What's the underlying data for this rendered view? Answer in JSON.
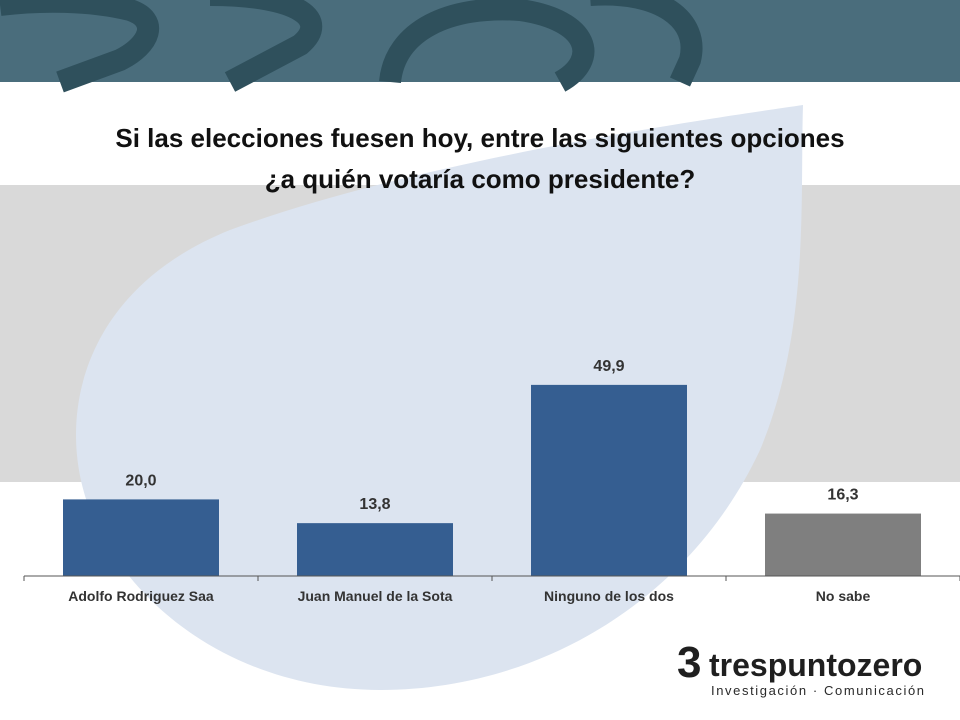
{
  "title": {
    "line1": "Si las elecciones fuesen hoy, entre las siguientes opciones",
    "line2": "¿a quién votaría como presidente?"
  },
  "colors": {
    "header_band": "#4a6d7c",
    "header_shapes": "#2f505c",
    "gray_band": "#d9d9d9",
    "blob": "#dce4f0",
    "bar_primary": "#355e91",
    "bar_secondary": "#7f7f7f",
    "text": "#333333"
  },
  "chart_data": {
    "type": "bar",
    "title": "Si las elecciones fuesen hoy, entre las siguientes opciones ¿a quién votaría como presidente?",
    "categories": [
      "Adolfo Rodriguez Saa",
      "Juan Manuel de la Sota",
      "Ninguno de los dos",
      "No sabe"
    ],
    "values": [
      20.0,
      13.8,
      49.9,
      16.3
    ],
    "value_labels": [
      "20,0",
      "13,8",
      "49,9",
      "16,3"
    ],
    "bar_colors": [
      "#355e91",
      "#355e91",
      "#355e91",
      "#7f7f7f"
    ],
    "xlabel": "",
    "ylabel": "",
    "ylim": [
      0,
      60
    ],
    "grid": false,
    "legend": "none"
  },
  "logo": {
    "mark": "3",
    "name": "trespuntozero",
    "tagline": "Investigación · Comunicación"
  }
}
